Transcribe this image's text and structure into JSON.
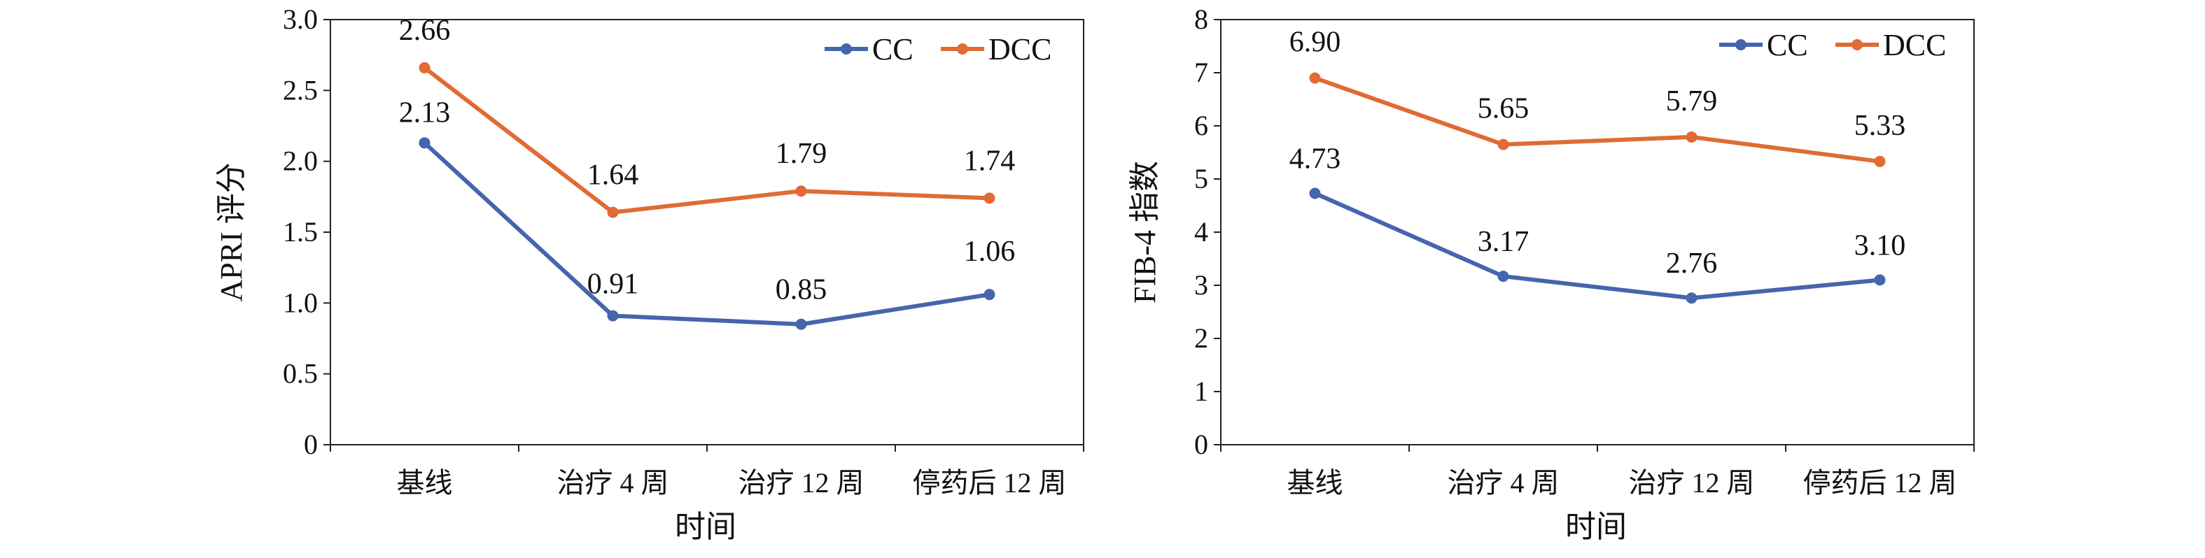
{
  "colors": {
    "cc": "#4565AD",
    "dcc": "#E06B34",
    "axis": "#222222"
  },
  "chart_data": [
    {
      "type": "line",
      "ylabel": "APRI 评分",
      "xlabel": "时间",
      "categories": [
        "基线",
        "治疗 4 周",
        "治疗 12 周",
        "停药后 12 周"
      ],
      "ylim": [
        0,
        3.0
      ],
      "yticks": [
        "0",
        "0.5",
        "1.0",
        "1.5",
        "2.0",
        "2.5",
        "3.0"
      ],
      "legend_position": "top-right",
      "series": [
        {
          "name": "CC",
          "values": [
            2.13,
            0.91,
            0.85,
            1.06
          ],
          "labels": [
            "2.13",
            "0.91",
            "0.85",
            "1.06"
          ]
        },
        {
          "name": "DCC",
          "values": [
            2.66,
            1.64,
            1.79,
            1.74
          ],
          "labels": [
            "2.66",
            "1.64",
            "1.79",
            "1.74"
          ]
        }
      ]
    },
    {
      "type": "line",
      "ylabel": "FIB-4 指数",
      "xlabel": "时间",
      "categories": [
        "基线",
        "治疗 4 周",
        "治疗 12 周",
        "停药后 12 周"
      ],
      "ylim": [
        0,
        8
      ],
      "yticks": [
        "0",
        "1",
        "2",
        "3",
        "4",
        "5",
        "6",
        "7",
        "8"
      ],
      "legend_position": "top-right",
      "series": [
        {
          "name": "CC",
          "values": [
            4.73,
            3.17,
            2.76,
            3.1
          ],
          "labels": [
            "4.73",
            "3.17",
            "2.76",
            "3.10"
          ]
        },
        {
          "name": "DCC",
          "values": [
            6.9,
            5.65,
            5.79,
            5.33
          ],
          "labels": [
            "6.90",
            "5.65",
            "5.79",
            "5.33"
          ]
        }
      ]
    }
  ]
}
